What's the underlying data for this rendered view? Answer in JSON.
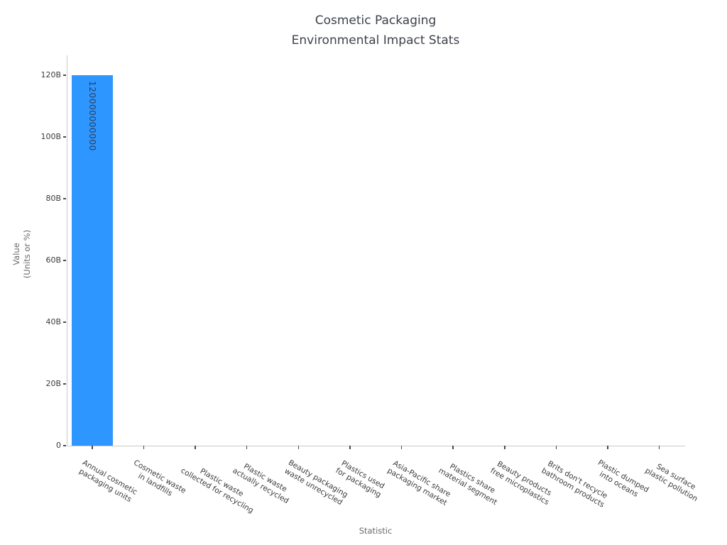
{
  "title": {
    "line1": "Cosmetic Packaging",
    "line2": "Environmental Impact Stats"
  },
  "x_axis": {
    "title": "Statistic"
  },
  "y_axis": {
    "title": "Value\n(Units or %)"
  },
  "colors": {
    "bar": "#2e96ff",
    "bar_value_text": "#2a3f5f",
    "title_text": "#3d424a",
    "tick_text": "#3b3b3b",
    "axis_title_text": "#6a6a6a",
    "spine": "#c9c9c9",
    "tick_mark": "#4a4a4a",
    "background": "#ffffff"
  },
  "chart_data": {
    "type": "bar",
    "title": "Cosmetic Packaging Environmental Impact Stats",
    "xlabel": "Statistic",
    "ylabel": "Value (Units or %)",
    "ylim": [
      0,
      126000000000
    ],
    "grid": false,
    "legend": "none",
    "categories": [
      "Annual cosmetic\npackaging units",
      "Cosmetic waste\nin landfills",
      "Plastic waste\ncollected for recycling",
      "Plastic waste\nactually recycled",
      "Beauty packaging\nwaste unrecycled",
      "Plastics used\nfor packaging",
      "Asia-Pacific share\npackaging market",
      "Plastics share\nmaterial segment",
      "Beauty products\nfree microplastics",
      "Brits don't recycle\nbathroom products",
      "Plastic dumped\ninto oceans",
      "Sea surface\nplastic pollution"
    ],
    "values": [
      120000000000,
      0,
      0,
      0,
      0,
      0,
      0,
      0,
      0,
      0,
      0,
      0
    ],
    "bar_value_labels": [
      "120000000000",
      "",
      "",
      "",
      "",
      "",
      "",
      "",
      "",
      "",
      "",
      ""
    ],
    "y_tick_values": [
      0,
      20000000000,
      40000000000,
      60000000000,
      80000000000,
      100000000000,
      120000000000
    ],
    "y_tick_labels": [
      "0",
      "20B",
      "40B",
      "60B",
      "80B",
      "100B",
      "120B"
    ]
  }
}
